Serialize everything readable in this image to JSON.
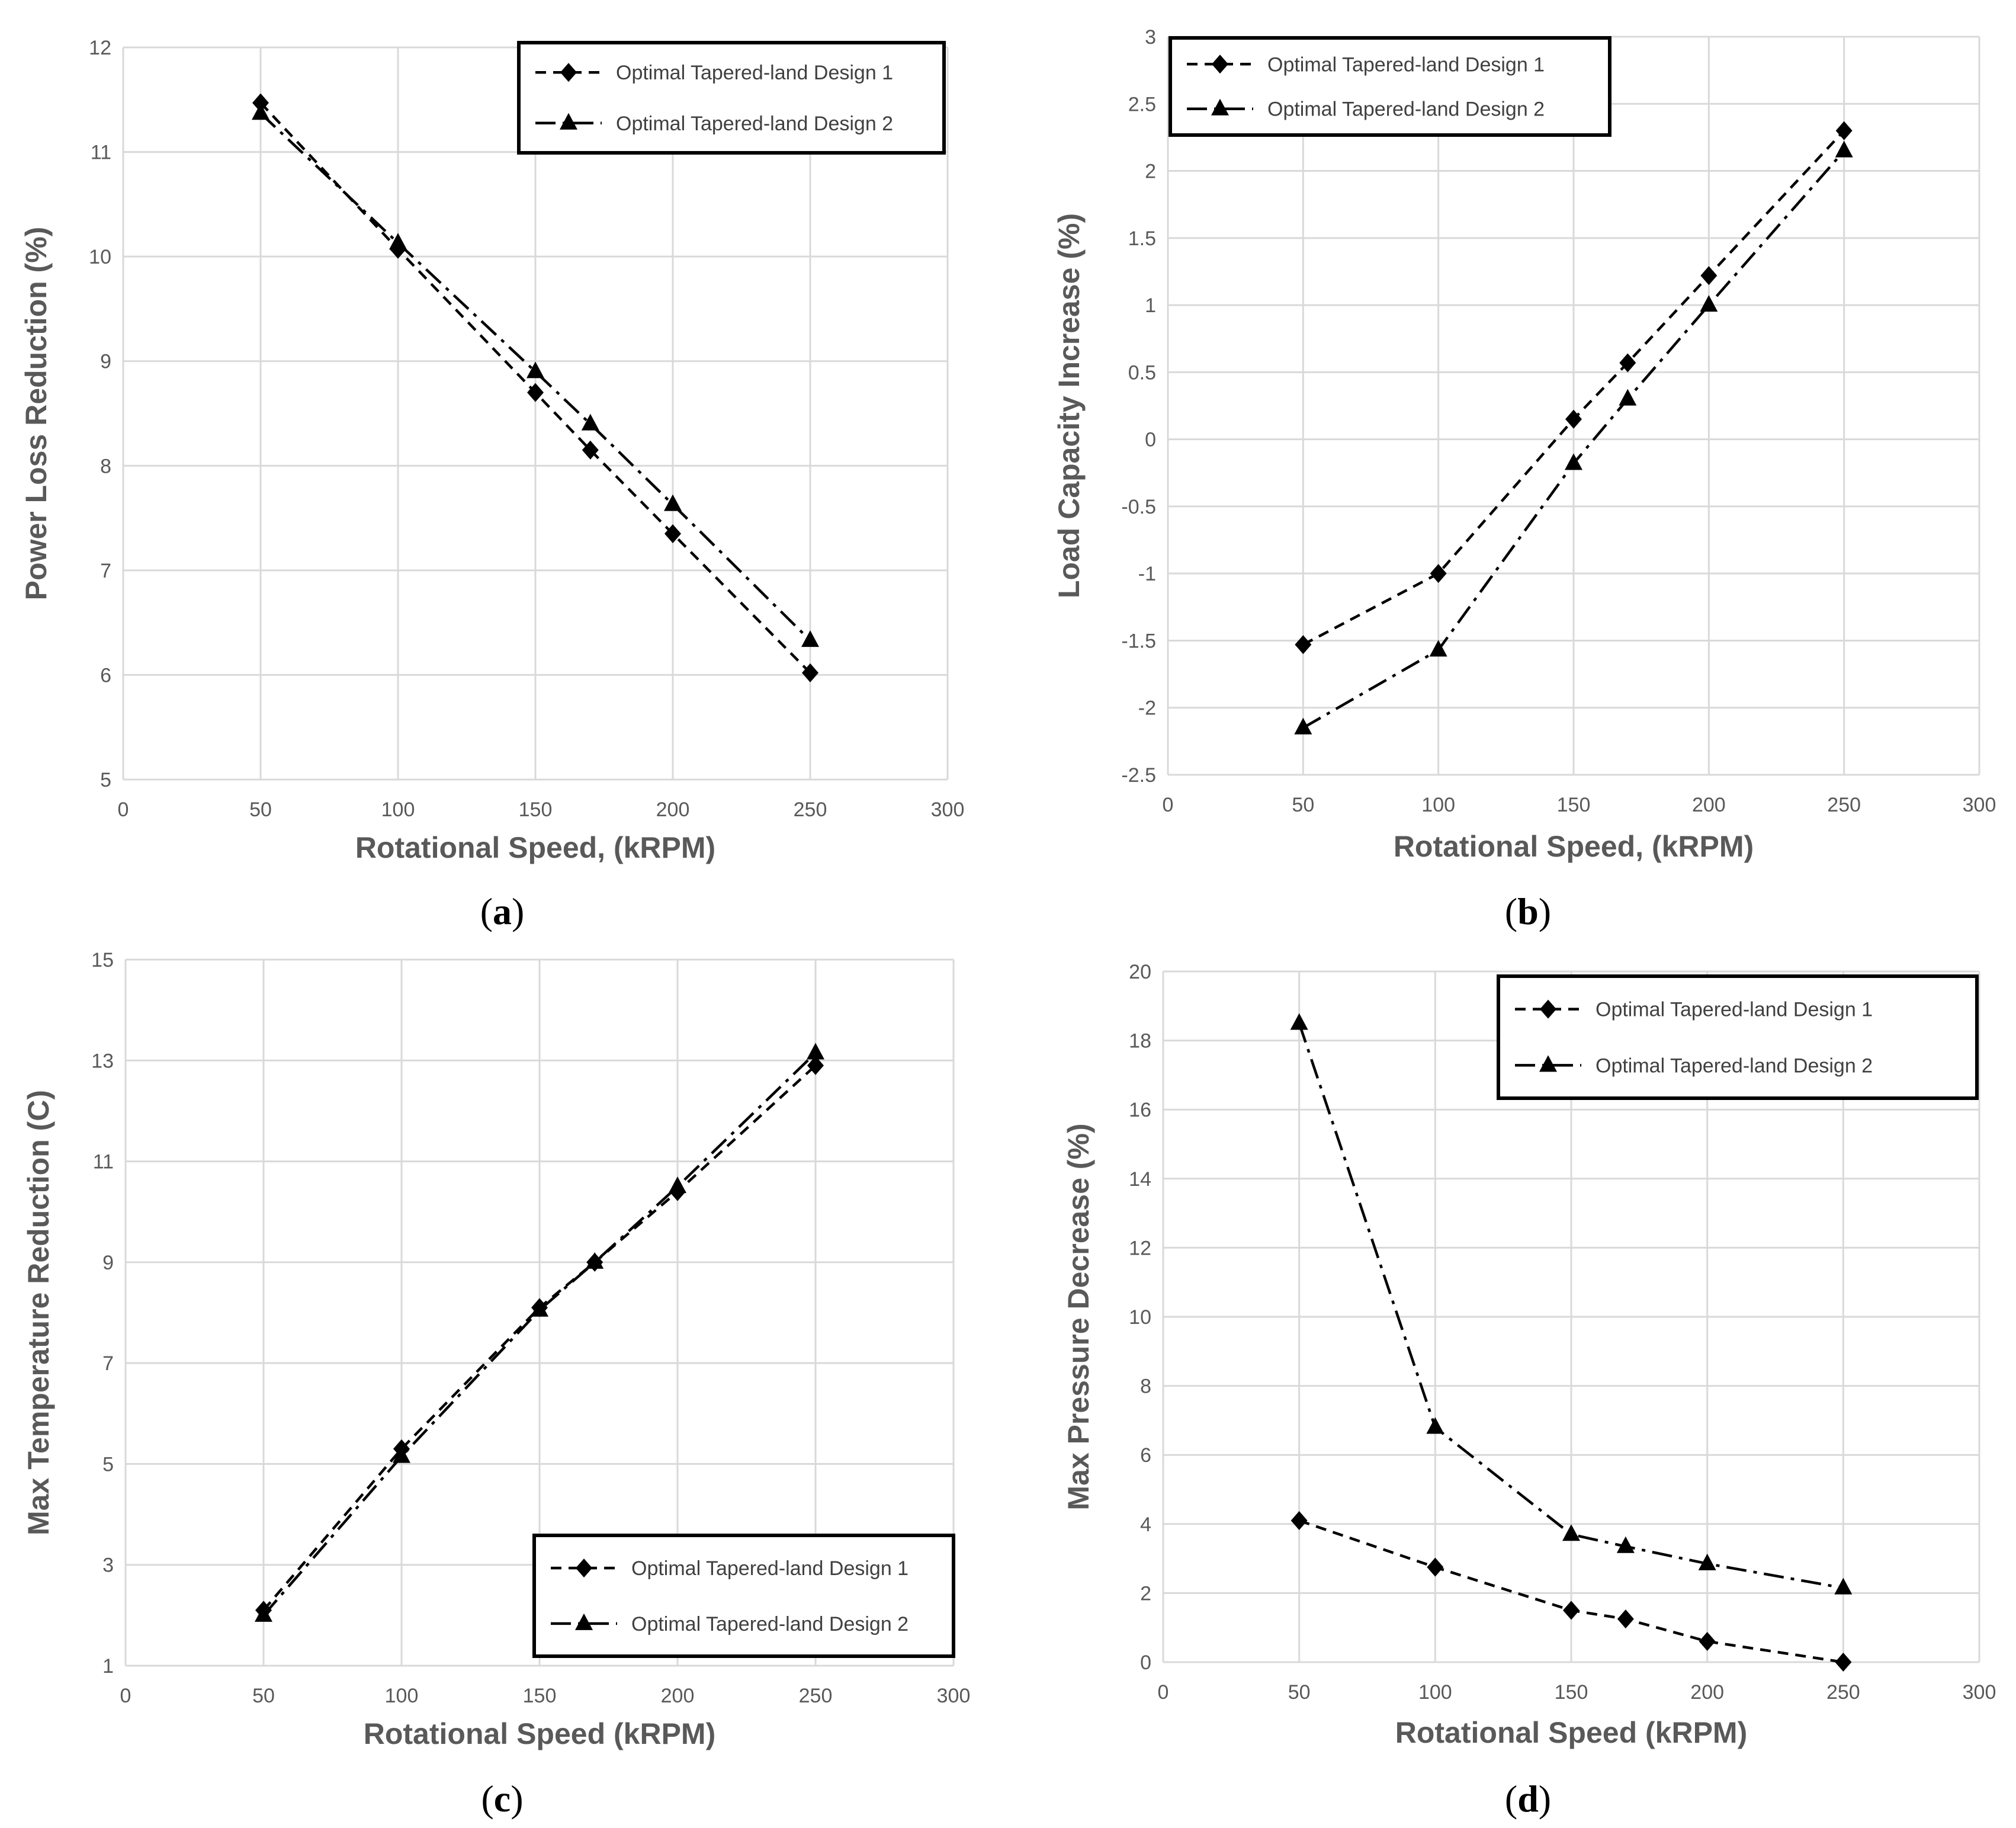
{
  "chart_data": [
    {
      "type": "line",
      "panel": "a",
      "xlabel": "Rotational Speed, (kRPM)",
      "ylabel": "Power Loss Reduction (%)",
      "xlim": [
        0,
        300
      ],
      "ylim": [
        5,
        12
      ],
      "xticks": [
        0,
        50,
        100,
        150,
        200,
        250,
        300
      ],
      "yticks": [
        5,
        6,
        7,
        8,
        9,
        10,
        11,
        12
      ],
      "grid": true,
      "legend_position": "top-right",
      "series": [
        {
          "name": "Optimal Tapered-land Design 1",
          "marker": "diamond",
          "dash": "dashed",
          "x": [
            50,
            100,
            150,
            170,
            200,
            250
          ],
          "y": [
            11.47,
            10.07,
            8.7,
            8.15,
            7.35,
            6.02
          ]
        },
        {
          "name": "Optimal Tapered-land Design 2",
          "marker": "triangle",
          "dash": "dashdot",
          "x": [
            50,
            100,
            150,
            170,
            200,
            250
          ],
          "y": [
            11.37,
            10.13,
            8.9,
            8.4,
            7.63,
            6.33
          ]
        }
      ]
    },
    {
      "type": "line",
      "panel": "b",
      "xlabel": "Rotational Speed, (kRPM)",
      "ylabel": "Load Capacity Increase (%)",
      "xlim": [
        0,
        300
      ],
      "ylim": [
        -2.5,
        3
      ],
      "xticks": [
        0,
        50,
        100,
        150,
        200,
        250,
        300
      ],
      "yticks": [
        -2.5,
        -2,
        -1.5,
        -1,
        -0.5,
        0,
        0.5,
        1,
        1.5,
        2,
        2.5,
        3
      ],
      "grid": true,
      "legend_position": "top-left",
      "series": [
        {
          "name": "Optimal Tapered-land Design 1",
          "marker": "diamond",
          "dash": "dashed",
          "x": [
            50,
            100,
            150,
            170,
            200,
            250
          ],
          "y": [
            -1.53,
            -1.0,
            0.15,
            0.57,
            1.22,
            2.3
          ]
        },
        {
          "name": "Optimal Tapered-land Design 2",
          "marker": "triangle",
          "dash": "dashdot",
          "x": [
            50,
            100,
            150,
            170,
            200,
            250
          ],
          "y": [
            -2.15,
            -1.57,
            -0.18,
            0.3,
            1.0,
            2.15
          ]
        }
      ]
    },
    {
      "type": "line",
      "panel": "c",
      "xlabel": "Rotational Speed (kRPM)",
      "ylabel": "Max Temperature Reduction (C)",
      "xlim": [
        0,
        300
      ],
      "ylim": [
        1,
        15
      ],
      "xticks": [
        0,
        50,
        100,
        150,
        200,
        250,
        300
      ],
      "yticks": [
        1,
        3,
        5,
        7,
        9,
        11,
        13,
        15
      ],
      "grid": true,
      "legend_position": "bottom-right",
      "series": [
        {
          "name": "Optimal Tapered-land Design 1",
          "marker": "diamond",
          "dash": "dashed",
          "x": [
            50,
            100,
            150,
            170,
            200,
            250
          ],
          "y": [
            2.1,
            5.3,
            8.1,
            9.0,
            10.4,
            12.9
          ]
        },
        {
          "name": "Optimal Tapered-land Design 2",
          "marker": "triangle",
          "dash": "dashdot",
          "x": [
            50,
            100,
            150,
            170,
            200,
            250
          ],
          "y": [
            2.0,
            5.15,
            8.05,
            9.0,
            10.5,
            13.15
          ]
        }
      ]
    },
    {
      "type": "line",
      "panel": "d",
      "xlabel": "Rotational Speed (kRPM)",
      "ylabel": "Max Pressure Decrease (%)",
      "xlim": [
        0,
        300
      ],
      "ylim": [
        0,
        20
      ],
      "xticks": [
        0,
        50,
        100,
        150,
        200,
        250,
        300
      ],
      "yticks": [
        0,
        2,
        4,
        6,
        8,
        10,
        12,
        14,
        16,
        18,
        20
      ],
      "grid": true,
      "legend_position": "top-right",
      "series": [
        {
          "name": "Optimal Tapered-land Design 1",
          "marker": "diamond",
          "dash": "dashed",
          "x": [
            50,
            100,
            150,
            170,
            200,
            250
          ],
          "y": [
            4.1,
            2.75,
            1.5,
            1.25,
            0.6,
            0.0
          ]
        },
        {
          "name": "Optimal Tapered-land Design 2",
          "marker": "triangle",
          "dash": "dashdot",
          "x": [
            50,
            100,
            150,
            170,
            200,
            250
          ],
          "y": [
            18.5,
            6.8,
            3.7,
            3.35,
            2.85,
            2.15
          ]
        }
      ]
    }
  ],
  "panel_labels": [
    "(a)",
    "(b)",
    "(c)",
    "(d)"
  ],
  "colors": {
    "series": "#000000",
    "grid": "#d9d9d9",
    "tick_text": "#595959",
    "legend_border": "#000000"
  }
}
